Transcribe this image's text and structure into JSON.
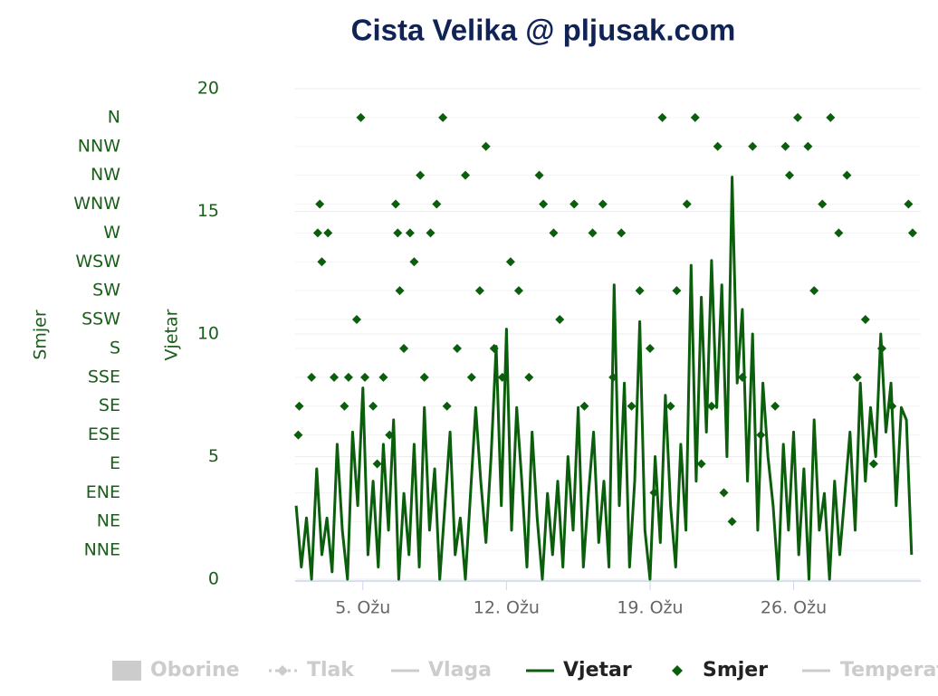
{
  "chart_data": {
    "type": "line",
    "title": "Cista Velika @ pljusak.com",
    "y_title": "Vjetar",
    "y2_title": "Smjer",
    "xlim": [
      1.7,
      32.2
    ],
    "xticks": [
      {
        "value": 5,
        "label": "5. Ožu"
      },
      {
        "value": 12,
        "label": "12. Ožu"
      },
      {
        "value": 19,
        "label": "19. Ožu"
      },
      {
        "value": 26,
        "label": "26. Ožu"
      }
    ],
    "ylim": [
      0,
      20
    ],
    "yticks": [
      0,
      5,
      10,
      15,
      20
    ],
    "y2lim": [
      0,
      17
    ],
    "y2ticks": [
      {
        "value": 1,
        "label": "NNE"
      },
      {
        "value": 2,
        "label": "NE"
      },
      {
        "value": 3,
        "label": "ENE"
      },
      {
        "value": 4,
        "label": "E"
      },
      {
        "value": 5,
        "label": "ESE"
      },
      {
        "value": 6,
        "label": "SE"
      },
      {
        "value": 7,
        "label": "SSE"
      },
      {
        "value": 8,
        "label": "S"
      },
      {
        "value": 9,
        "label": "SSW"
      },
      {
        "value": 10,
        "label": "SW"
      },
      {
        "value": 11,
        "label": "WSW"
      },
      {
        "value": 12,
        "label": "W"
      },
      {
        "value": 13,
        "label": "WNW"
      },
      {
        "value": 14,
        "label": "NW"
      },
      {
        "value": 15,
        "label": "NNW"
      },
      {
        "value": 16,
        "label": "N"
      }
    ],
    "grid": true,
    "series": [
      {
        "name": "Vjetar",
        "type": "line",
        "color": "#0b5e0b",
        "x": [
          1.75,
          2,
          2.25,
          2.5,
          2.75,
          3,
          3.25,
          3.5,
          3.75,
          4,
          4.25,
          4.5,
          4.75,
          5,
          5.25,
          5.5,
          5.75,
          6,
          6.25,
          6.5,
          6.75,
          7,
          7.25,
          7.5,
          7.75,
          8,
          8.25,
          8.5,
          8.75,
          9,
          9.25,
          9.5,
          9.75,
          10,
          10.25,
          10.5,
          10.75,
          11,
          11.25,
          11.5,
          11.75,
          12,
          12.25,
          12.5,
          12.75,
          13,
          13.25,
          13.5,
          13.75,
          14,
          14.25,
          14.5,
          14.75,
          15,
          15.25,
          15.5,
          15.75,
          16,
          16.25,
          16.5,
          16.75,
          17,
          17.25,
          17.5,
          17.75,
          18,
          18.25,
          18.5,
          18.75,
          19,
          19.25,
          19.5,
          19.75,
          20,
          20.25,
          20.5,
          20.75,
          21,
          21.25,
          21.5,
          21.75,
          22,
          22.25,
          22.5,
          22.75,
          23,
          23.25,
          23.5,
          23.75,
          24,
          24.25,
          24.5,
          24.75,
          25,
          25.25,
          25.5,
          25.75,
          26,
          26.25,
          26.5,
          26.75,
          27,
          27.25,
          27.5,
          27.75,
          28,
          28.25,
          28.5,
          28.75,
          29,
          29.25,
          29.5,
          29.75,
          30,
          30.25,
          30.5,
          30.75,
          31,
          31.25,
          31.5,
          31.75
        ],
        "values": [
          3,
          0.5,
          2.5,
          0,
          4.5,
          1,
          2.5,
          0.3,
          5.5,
          2,
          0,
          6,
          3,
          7.8,
          1,
          4,
          0.5,
          5.5,
          2,
          6.5,
          0,
          3.5,
          1,
          5.5,
          0.5,
          7,
          2,
          4.5,
          0,
          3,
          6,
          1,
          2.5,
          0,
          3.5,
          7,
          4,
          1.5,
          5,
          9.5,
          3,
          10.2,
          2,
          7,
          4,
          0.5,
          6,
          2.5,
          0,
          3.5,
          1,
          4,
          0.5,
          5,
          2,
          7,
          0.5,
          3.5,
          6,
          1.5,
          4,
          0.5,
          12,
          3,
          8,
          0.5,
          4,
          10.5,
          2,
          0,
          5,
          1.5,
          7.5,
          3,
          0.5,
          5.5,
          2,
          12.8,
          4,
          11.5,
          6,
          13,
          7,
          12,
          5,
          16.4,
          8,
          11,
          4,
          10,
          2,
          8,
          5,
          3,
          0,
          5.5,
          2,
          6,
          1,
          4.5,
          0,
          6.5,
          2,
          3.5,
          0,
          4,
          1,
          3.5,
          6,
          2,
          8,
          4,
          7,
          5,
          10,
          6,
          8,
          3,
          7,
          6.5,
          1
        ]
      },
      {
        "name": "Smjer",
        "type": "scatter",
        "axis": "y2",
        "color": "#0b5e0b",
        "x": [
          1.85,
          1.9,
          2.5,
          2.8,
          2.9,
          3.0,
          3.3,
          3.6,
          4.1,
          4.3,
          4.7,
          4.9,
          5.1,
          5.5,
          5.7,
          6.0,
          6.3,
          6.6,
          6.7,
          6.8,
          7.0,
          7.3,
          7.5,
          7.8,
          8.0,
          8.3,
          8.6,
          8.9,
          9.1,
          9.6,
          10.0,
          10.3,
          10.7,
          11.0,
          11.4,
          11.8,
          12.2,
          12.6,
          13.1,
          13.6,
          13.8,
          14.3,
          14.6,
          15.3,
          15.8,
          16.2,
          16.7,
          17.2,
          17.6,
          18.1,
          18.5,
          19.0,
          19.2,
          19.6,
          20.0,
          20.3,
          20.8,
          21.2,
          21.5,
          22.0,
          22.3,
          22.6,
          23.0,
          23.5,
          24.0,
          24.4,
          25.1,
          25.6,
          25.8,
          26.2,
          26.7,
          27.0,
          27.4,
          27.8,
          28.2,
          28.6,
          29.1,
          29.5,
          29.9,
          30.3,
          30.8,
          31.6,
          31.8
        ],
        "values": [
          5,
          6,
          7,
          12,
          13,
          11,
          12,
          7,
          6,
          7,
          9,
          16,
          7,
          6,
          4,
          7,
          5,
          13,
          12,
          10,
          8,
          12,
          11,
          14,
          7,
          12,
          13,
          16,
          6,
          8,
          14,
          7,
          10,
          15,
          8,
          7,
          11,
          10,
          7,
          14,
          13,
          12,
          9,
          13,
          6,
          12,
          13,
          7,
          12,
          6,
          10,
          8,
          3,
          16,
          6,
          10,
          13,
          16,
          4,
          6,
          15,
          3,
          2,
          7,
          15,
          5,
          6,
          15,
          14,
          16,
          15,
          10,
          13,
          16,
          12,
          14,
          7,
          9,
          4,
          8,
          6,
          13,
          12
        ]
      }
    ],
    "inactive_series": [
      "Oborine",
      "Tlak",
      "Vlaga",
      "Temperatura"
    ]
  }
}
